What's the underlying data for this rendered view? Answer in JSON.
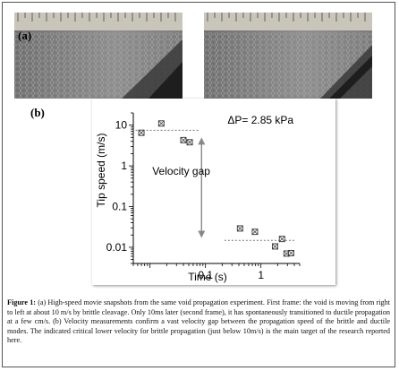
{
  "panel_a": {
    "label": "(a)"
  },
  "panel_b": {
    "label": "(b)"
  },
  "chart_data": {
    "type": "scatter",
    "xlabel": "Time (s)",
    "ylabel": "Tip speed  (m/s)",
    "x_scale": "log",
    "y_scale": "log",
    "xlim": [
      0.005,
      5
    ],
    "ylim": [
      0.004,
      20
    ],
    "x_ticks": [
      {
        "value": 0.1,
        "label": "0.1"
      },
      {
        "value": 1,
        "label": "1"
      }
    ],
    "y_ticks": [
      {
        "value": 10,
        "label": "10"
      },
      {
        "value": 1,
        "label": "1"
      },
      {
        "value": 0.1,
        "label": "0.1"
      },
      {
        "value": 0.01,
        "label": "0.01"
      }
    ],
    "points": [
      {
        "x": 0.007,
        "y": 6.5
      },
      {
        "x": 0.016,
        "y": 11
      },
      {
        "x": 0.04,
        "y": 4.3
      },
      {
        "x": 0.052,
        "y": 3.8
      },
      {
        "x": 0.42,
        "y": 0.029
      },
      {
        "x": 0.78,
        "y": 0.024
      },
      {
        "x": 1.8,
        "y": 0.0105
      },
      {
        "x": 2.4,
        "y": 0.016
      },
      {
        "x": 2.9,
        "y": 0.007
      },
      {
        "x": 3.5,
        "y": 0.0072
      }
    ],
    "reference_lines": [
      {
        "y": 7.5,
        "x_from": 0.0055,
        "x_to": 0.075
      },
      {
        "y": 0.0148,
        "x_from": 0.22,
        "x_to": 4
      }
    ],
    "annotations": {
      "pressure": "ΔP= 2.85 kPa",
      "gap": "Velocity gap"
    },
    "gap_arrow": {
      "x": 0.085,
      "y_top": 5,
      "y_bottom": 0.017
    }
  },
  "caption": {
    "label": "Figure 1:",
    "text": "(a) High-speed movie snapshots from the same void propagation experiment. First frame: the void is moving from right to left at about 10 m/s by brittle cleavage. Only 10ms later (second frame), it has spontaneously transitioned to ductile propagation at a few cm/s. (b) Velocity measurements confirm a vast velocity gap between the propagation speed of the brittle and ductile modes. The indicated critical lower velocity for brittle propagation (just below 10m/s) is the main target of the research reported here."
  }
}
